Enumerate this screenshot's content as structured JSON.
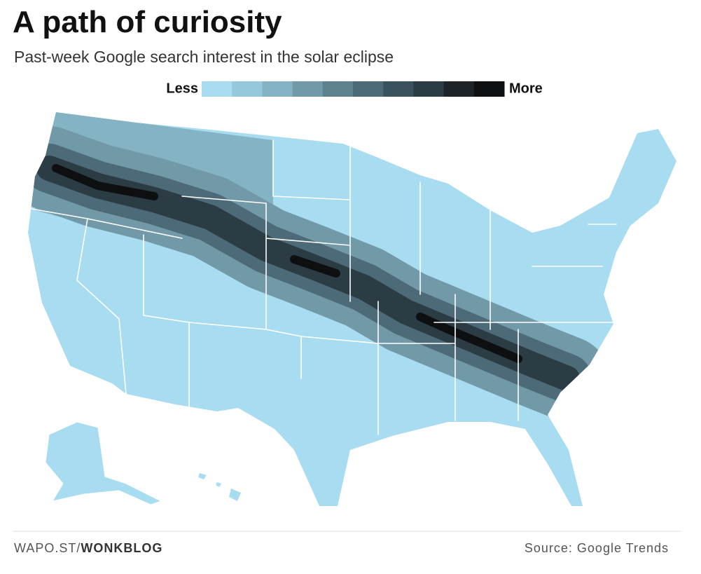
{
  "header": {
    "title": "A path of curiosity",
    "subtitle": "Past-week Google search interest in the solar eclipse"
  },
  "legend": {
    "low_label": "Less",
    "high_label": "More",
    "colors": [
      "#a8dcf0",
      "#95c8db",
      "#84b3c3",
      "#7199a8",
      "#5e8190",
      "#4c6a77",
      "#3a525d",
      "#2b3c45",
      "#1c242a",
      "#0d0f10"
    ]
  },
  "footer": {
    "link_prefix": "WAPO.ST/",
    "link_bold": "WONKBLOG",
    "source": "Source: Google Trends"
  }
}
